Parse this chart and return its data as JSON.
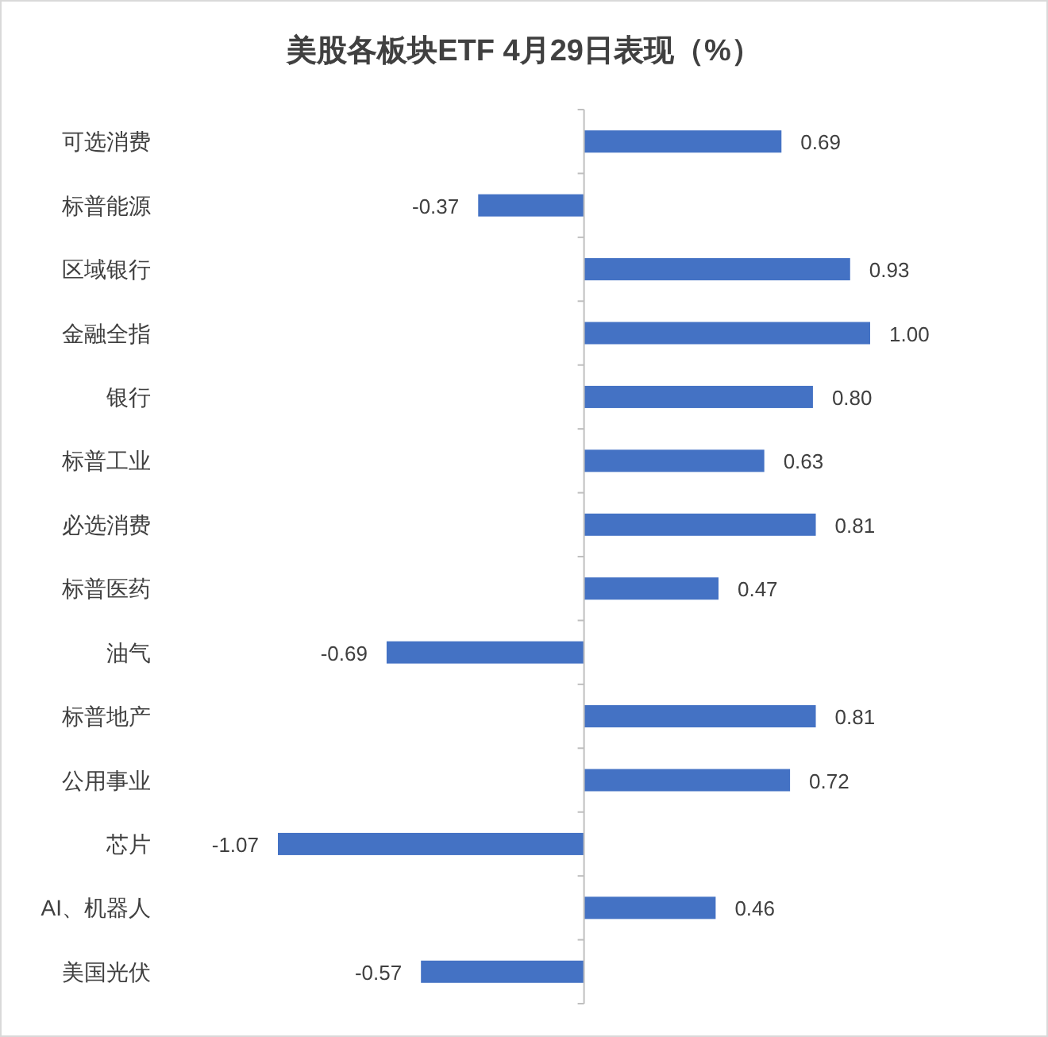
{
  "chart_data": {
    "type": "bar",
    "title": "美股各板块ETF  4月29日表现（%）",
    "orientation": "horizontal",
    "color": "#4472c4",
    "categories": [
      "可选消费",
      "标普能源",
      "区域银行",
      "金融全指",
      "银行",
      "标普工业",
      "必选消费",
      "标普医药",
      "油气",
      "标普地产",
      "公用事业",
      "芯片",
      "AI、机器人",
      "美国光伏"
    ],
    "values": [
      0.69,
      -0.37,
      0.93,
      1.0,
      0.8,
      0.63,
      0.81,
      0.47,
      -0.69,
      0.81,
      0.72,
      -1.07,
      0.46,
      -0.57
    ],
    "value_labels": [
      "0.69",
      "-0.37",
      "0.93",
      "1.00",
      "0.80",
      "0.63",
      "0.81",
      "0.47",
      "-0.69",
      "0.81",
      "0.72",
      "-1.07",
      "0.46",
      "-0.57"
    ]
  }
}
